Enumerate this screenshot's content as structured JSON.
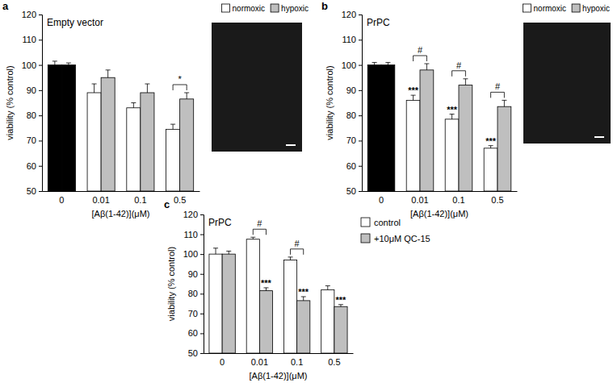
{
  "chart_data": [
    {
      "type": "bar",
      "panel_label": "a",
      "title": "Empty vector",
      "categories": [
        "0",
        "0.01",
        "0.1",
        "0.5"
      ],
      "series": [
        {
          "name": "normoxic",
          "color": "#ffffff",
          "colors": [
            "#000000",
            "#ffffff",
            "#ffffff",
            "#ffffff"
          ],
          "values": [
            100,
            89,
            83,
            74.5
          ],
          "errors": [
            1.5,
            3.5,
            2,
            2
          ]
        },
        {
          "name": "hypoxic",
          "color": "#bfbfbf",
          "colors": [
            "#000000",
            "#bfbfbf",
            "#bfbfbf",
            "#bfbfbf"
          ],
          "values": [
            100,
            95,
            89,
            86.5
          ],
          "errors": [
            0.8,
            3,
            3.5,
            2.5
          ]
        }
      ],
      "x_label": "[Aβ(1-42)](μM)",
      "y_label": "viability (% control)",
      "ylim": [
        50,
        120
      ],
      "yticks": [
        50,
        60,
        70,
        80,
        90,
        100,
        110,
        120
      ],
      "legend": "top",
      "annotations": [
        {
          "text": "*",
          "category": "0.5"
        }
      ]
    },
    {
      "type": "bar",
      "panel_label": "b",
      "title": "PrPC",
      "categories": [
        "0",
        "0.01",
        "0.1",
        "0.5"
      ],
      "series": [
        {
          "name": "normoxic",
          "color": "#ffffff",
          "colors": [
            "#000000",
            "#ffffff",
            "#ffffff",
            "#ffffff"
          ],
          "values": [
            100,
            86,
            78.5,
            67
          ],
          "errors": [
            1,
            2,
            2,
            1
          ]
        },
        {
          "name": "hypoxic",
          "color": "#bfbfbf",
          "colors": [
            "#000000",
            "#bfbfbf",
            "#bfbfbf",
            "#bfbfbf"
          ],
          "values": [
            100,
            98,
            92,
            83.5
          ],
          "errors": [
            1,
            2.5,
            2.5,
            2.5
          ]
        }
      ],
      "x_label": "[Aβ(1-42)](μM)",
      "y_label": "viability (% control)",
      "ylim": [
        50,
        120
      ],
      "yticks": [
        50,
        60,
        70,
        80,
        90,
        100,
        110,
        120
      ],
      "legend": "top",
      "annotations": [
        {
          "text": "***",
          "category": "0.01",
          "series": "normoxic"
        },
        {
          "text": "***",
          "category": "0.1",
          "series": "normoxic"
        },
        {
          "text": "***",
          "category": "0.5",
          "series": "normoxic"
        },
        {
          "text": "#",
          "category": "0.01"
        },
        {
          "text": "#",
          "category": "0.1"
        },
        {
          "text": "#",
          "category": "0.5"
        }
      ]
    },
    {
      "type": "bar",
      "panel_label": "c",
      "title": "PrPC",
      "categories": [
        "0",
        "0.01",
        "0.1",
        "0.5"
      ],
      "series": [
        {
          "name": "control",
          "color": "#ffffff",
          "values": [
            100,
            107.5,
            97,
            82
          ],
          "errors": [
            3,
            1,
            1.5,
            2
          ]
        },
        {
          "name": "+10μM QC-15",
          "color": "#bfbfbf",
          "values": [
            100,
            81.5,
            76.5,
            73.5
          ],
          "errors": [
            1.5,
            1.5,
            2,
            1
          ]
        }
      ],
      "x_label": "[Aβ(1-42)](μM)",
      "y_label": "viability (% control)",
      "ylim": [
        50,
        120
      ],
      "yticks": [
        50,
        60,
        70,
        80,
        90,
        100,
        110,
        120
      ],
      "legend": "right",
      "annotations": [
        {
          "text": "***",
          "category": "0.01",
          "series": "+10μM QC-15"
        },
        {
          "text": "***",
          "category": "0.1",
          "series": "+10μM QC-15"
        },
        {
          "text": "***",
          "category": "0.5",
          "series": "+10μM QC-15"
        },
        {
          "text": "#",
          "category": "0.01"
        },
        {
          "text": "#",
          "category": "0.1"
        }
      ]
    }
  ]
}
